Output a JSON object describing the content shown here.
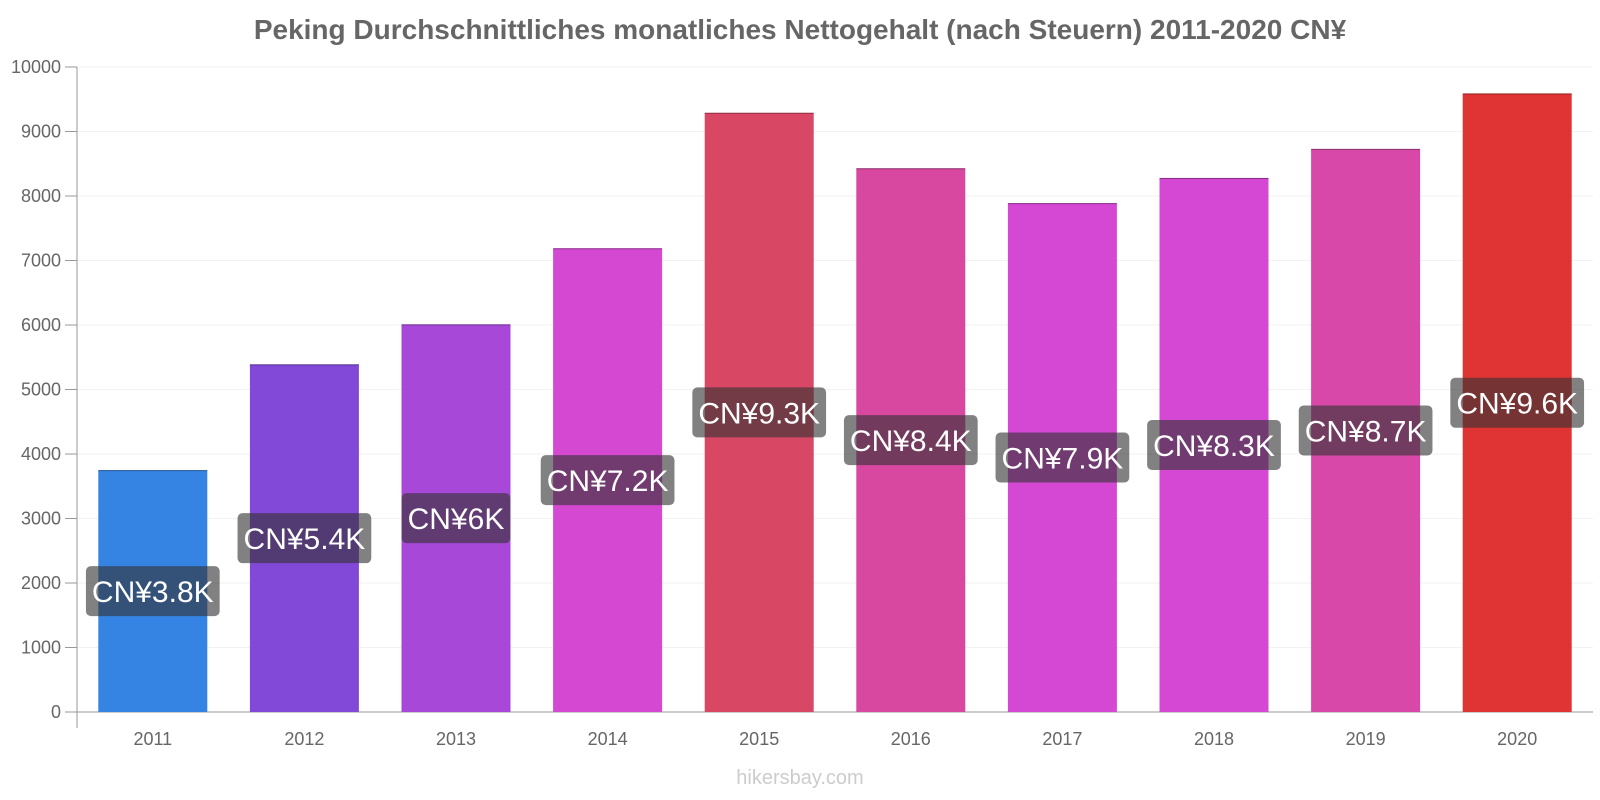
{
  "chart_data": {
    "type": "bar",
    "title": "Peking Durchschnittliches monatliches Nettogehalt (nach Steuern) 2011-2020 CN¥",
    "xlabel": "",
    "ylabel": "",
    "ylim": [
      0,
      10000
    ],
    "yticks": [
      0,
      1000,
      2000,
      3000,
      4000,
      5000,
      6000,
      7000,
      8000,
      9000,
      10000
    ],
    "grid": true,
    "categories": [
      "2011",
      "2012",
      "2013",
      "2014",
      "2015",
      "2016",
      "2017",
      "2018",
      "2019",
      "2020"
    ],
    "values": [
      3750,
      5390,
      6010,
      7190,
      9290,
      8430,
      7890,
      8280,
      8730,
      9590
    ],
    "data_labels": [
      "CN¥3.8K",
      "CN¥5.4K",
      "CN¥6K",
      "CN¥7.2K",
      "CN¥9.3K",
      "CN¥8.4K",
      "CN¥7.9K",
      "CN¥8.3K",
      "CN¥8.7K",
      "CN¥9.6K"
    ],
    "colors": [
      "#3584e4",
      "#8248d8",
      "#a748d8",
      "#d448d2",
      "#d84864",
      "#d848a0",
      "#d448d4",
      "#d448d4",
      "#d848a8",
      "#e03434"
    ]
  },
  "watermark": "hikersbay.com"
}
